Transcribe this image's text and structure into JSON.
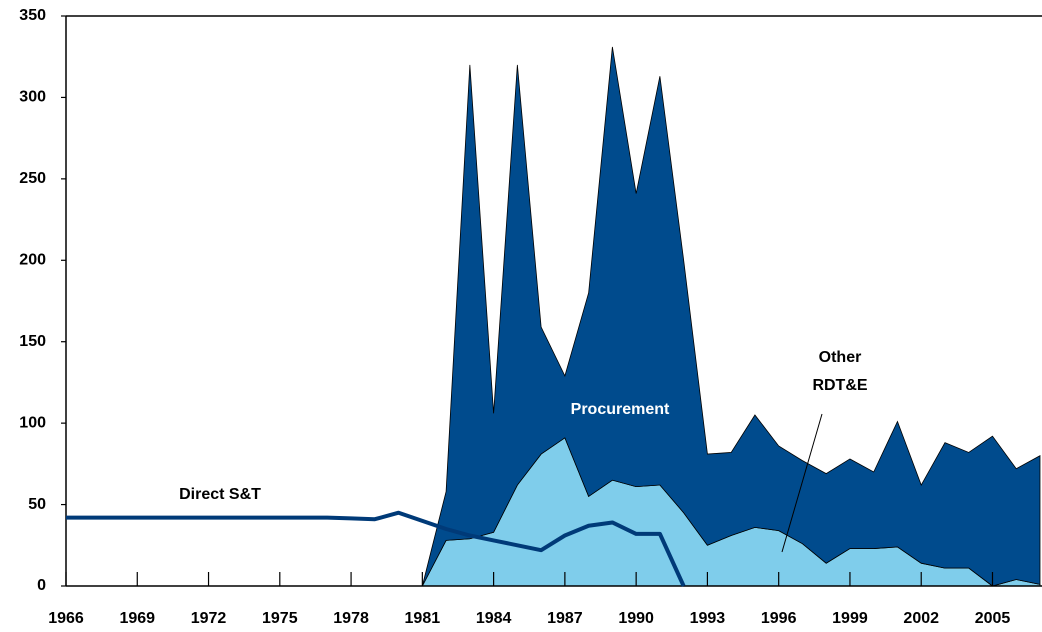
{
  "chart_data": {
    "type": "stacked-area-line",
    "xlim": [
      1966,
      2007
    ],
    "ylim": [
      0,
      350
    ],
    "xticks": [
      1966,
      1969,
      1972,
      1975,
      1978,
      1981,
      1984,
      1987,
      1990,
      1993,
      1996,
      1999,
      2002,
      2005
    ],
    "yticks": [
      0,
      50,
      100,
      150,
      200,
      250,
      300,
      350
    ],
    "series": [
      {
        "name": "Other RDT&E",
        "kind": "area",
        "color": "#7fcdeb",
        "x": [
          1981,
          1982,
          1983,
          1984,
          1985,
          1986,
          1987,
          1988,
          1989,
          1990,
          1991,
          1992,
          1993,
          1994,
          1995,
          1996,
          1997,
          1998,
          1999,
          2000,
          2001,
          2002,
          2003,
          2004,
          2005,
          2006,
          2007
        ],
        "values": [
          0,
          28,
          29,
          33,
          62,
          81,
          91,
          55,
          65,
          61,
          62,
          45,
          25,
          31,
          36,
          34,
          26,
          14,
          23,
          23,
          24,
          14,
          11,
          11,
          0,
          4,
          1
        ]
      },
      {
        "name": "Procurement",
        "kind": "area",
        "color": "#004b8d",
        "x": [
          1981,
          1982,
          1983,
          1984,
          1985,
          1986,
          1987,
          1988,
          1989,
          1990,
          1991,
          1992,
          1993,
          1994,
          1995,
          1996,
          1997,
          1998,
          1999,
          2000,
          2001,
          2002,
          2003,
          2004,
          2005,
          2006,
          2007
        ],
        "values": [
          0,
          30,
          291,
          73,
          258,
          78,
          38,
          125,
          266,
          180,
          251,
          155,
          56,
          51,
          69,
          52,
          51,
          55,
          55,
          47,
          77,
          48,
          77,
          71,
          92,
          68,
          79
        ]
      },
      {
        "name": "Direct S&T",
        "kind": "line",
        "color": "#003a78",
        "x": [
          1966,
          1967,
          1968,
          1969,
          1970,
          1971,
          1972,
          1973,
          1974,
          1975,
          1976,
          1977,
          1978,
          1979,
          1980,
          1981,
          1982,
          1983,
          1984,
          1985,
          1986,
          1987,
          1988,
          1989,
          1990,
          1991,
          1992
        ],
        "values": [
          42,
          42,
          42,
          42,
          42,
          42,
          42,
          42,
          42,
          42,
          42,
          42,
          41.5,
          41,
          45,
          40,
          35,
          31,
          28,
          25,
          22,
          31,
          37,
          39,
          32,
          32,
          0
        ]
      }
    ]
  }
}
